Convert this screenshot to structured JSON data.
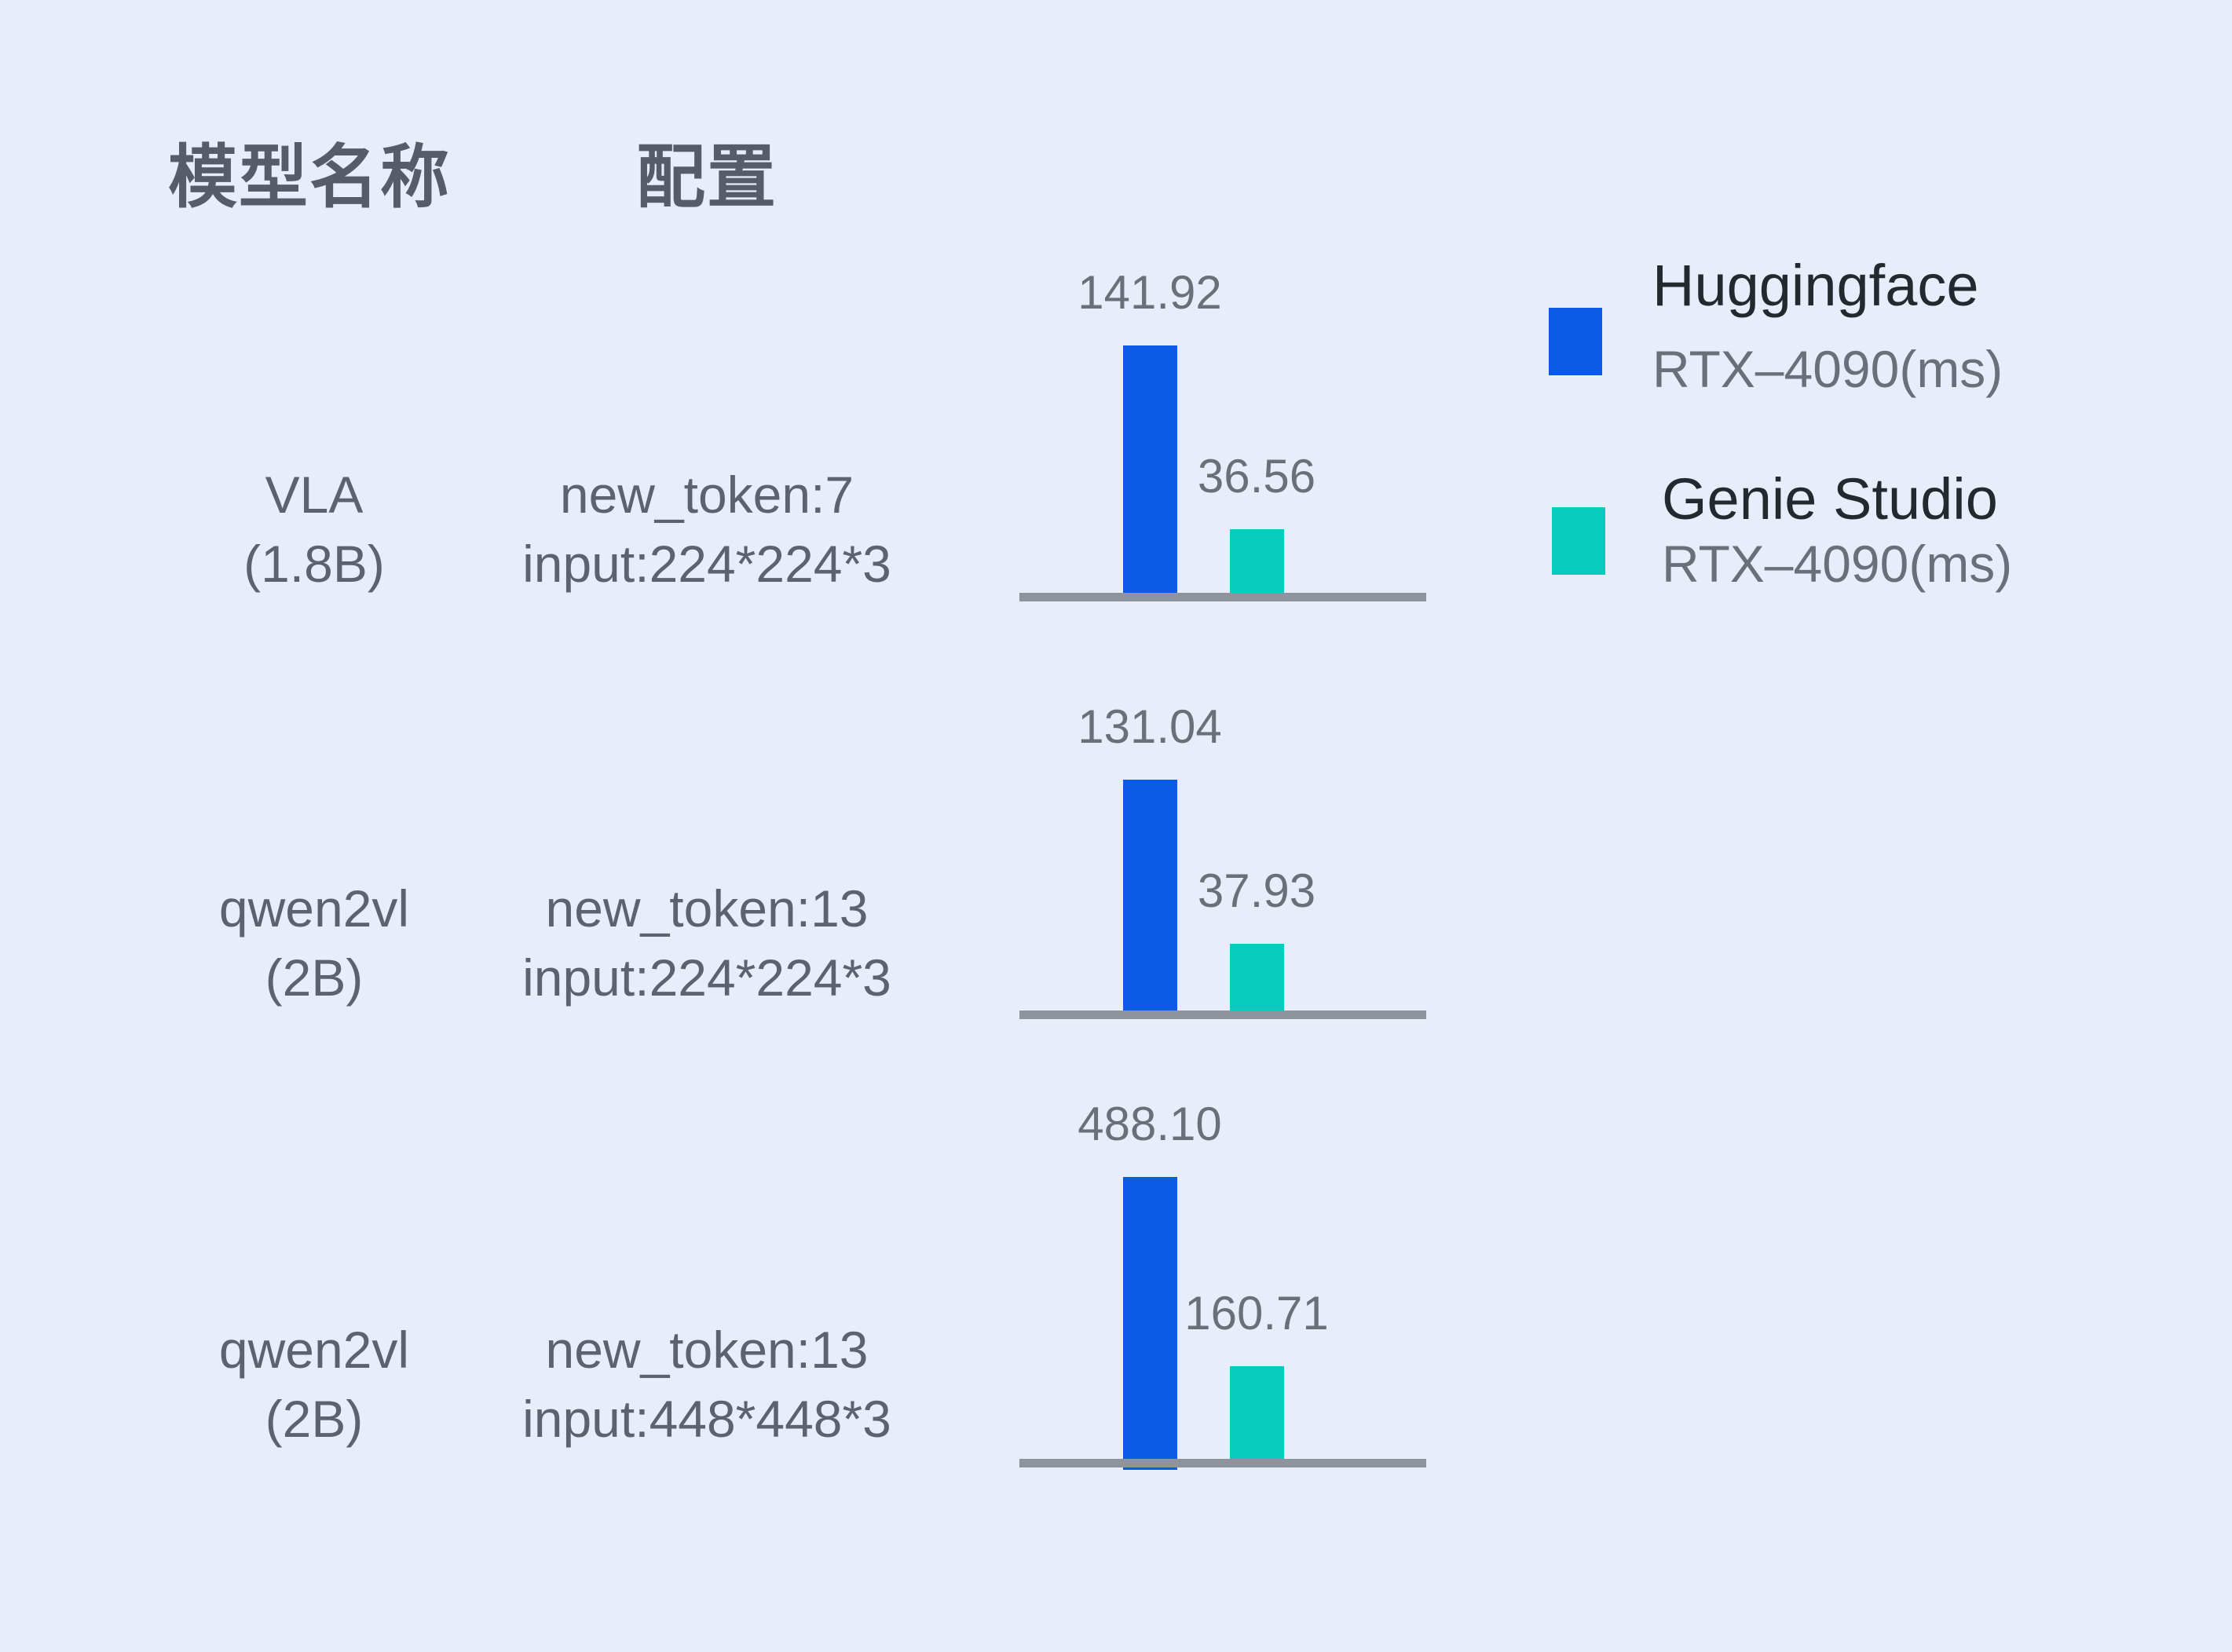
{
  "page": {
    "background_color": "#E8EDFA"
  },
  "header": {
    "model_column": "模型名称",
    "config_column": "配置"
  },
  "rows": [
    {
      "model_name": "VLA",
      "model_size": "(1.8B)",
      "config_line1": "new_token:7",
      "config_line2": "input:224*224*3",
      "huggingface_value": "141.92",
      "genie_value": "36.56"
    },
    {
      "model_name": "qwen2vl",
      "model_size": "(2B)",
      "config_line1": "new_token:13",
      "config_line2": "input:224*224*3",
      "huggingface_value": "131.04",
      "genie_value": "37.93"
    },
    {
      "model_name": "qwen2vl",
      "model_size": "(2B)",
      "config_line1": "new_token:13",
      "config_line2": "input:448*448*3",
      "huggingface_value": "488.10",
      "genie_value": "160.71"
    }
  ],
  "legend": {
    "entries": [
      {
        "label": "Huggingface",
        "sublabel": "RTX–4090(ms)",
        "color": "#0B5BE6"
      },
      {
        "label": "Genie Studio",
        "sublabel": "RTX–4090(ms)",
        "color": "#07CBBE"
      }
    ]
  },
  "colors": {
    "huggingface_bar": "#0B5BE6",
    "genie_bar": "#07CBBE",
    "axis_line": "#8E939C",
    "background": "#E8EDFA"
  },
  "chart_data": {
    "type": "bar",
    "title": "",
    "unit": "ms",
    "categories": [
      "VLA (1.8B) — new_token:7 input:224*224*3",
      "qwen2vl (2B) — new_token:13 input:224*224*3",
      "qwen2vl (2B) — new_token:13 input:448*448*3"
    ],
    "series": [
      {
        "name": "Huggingface RTX–4090(ms)",
        "color": "#0B5BE6",
        "values": [
          141.92,
          131.04,
          488.1
        ]
      },
      {
        "name": "Genie Studio RTX–4090(ms)",
        "color": "#07CBBE",
        "values": [
          36.56,
          37.93,
          160.71
        ]
      }
    ],
    "value_labels_shown": true,
    "grid": false,
    "axis_style": "per-row gray baseline only, no ticks",
    "legend_position": "top-right"
  }
}
